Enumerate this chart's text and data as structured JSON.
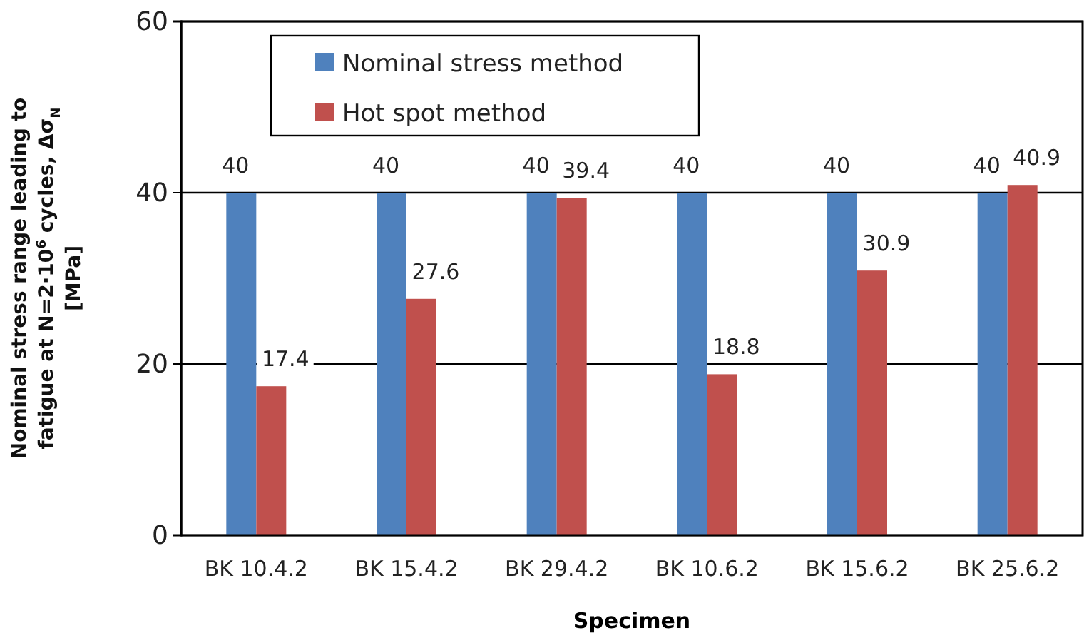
{
  "chart_data": {
    "type": "bar",
    "xlabel": "Specimen",
    "ylabel": "Nominal stress range leading to fatigue at N=2·10$^{6}$ cycles, Δσ$_{N}$ [MPa]",
    "categories": [
      "BK 10.4.2",
      "BK 15.4.2",
      "BK 29.4.2",
      "BK 10.6.2",
      "BK 15.6.2",
      "BK 25.6.2"
    ],
    "series": [
      {
        "name": "Nominal stress method",
        "color": "#4f81bd",
        "values": [
          40,
          40,
          40,
          40,
          40,
          40
        ]
      },
      {
        "name": "Hot spot method",
        "color": "#c0504d",
        "values": [
          17.4,
          27.6,
          39.4,
          18.8,
          30.9,
          40.9
        ]
      }
    ],
    "ylim": [
      0,
      60
    ],
    "yticks": [
      0,
      20,
      40,
      60
    ],
    "grid": "y",
    "legend": "top left",
    "data_labels": true
  }
}
